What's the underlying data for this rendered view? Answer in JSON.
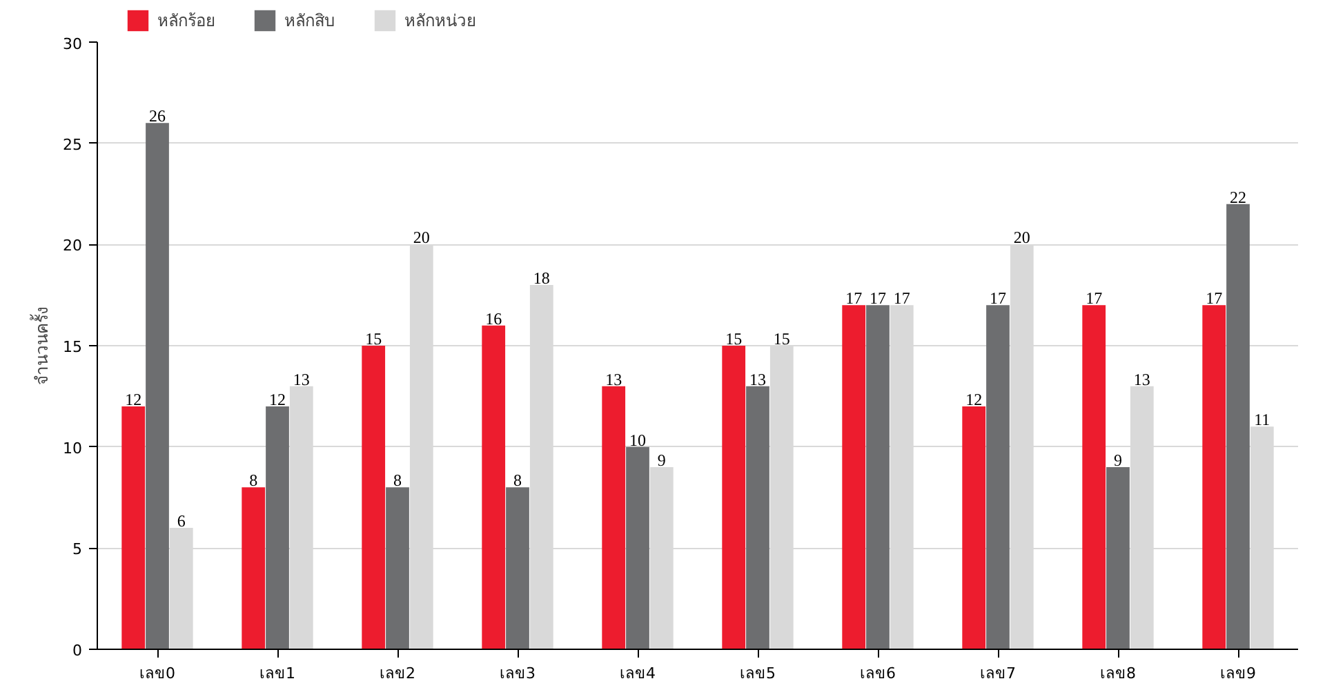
{
  "chart_data": {
    "type": "bar",
    "ylabel": "จำนวนครั้ง",
    "categories": [
      "เลข0",
      "เลข1",
      "เลข2",
      "เลข3",
      "เลข4",
      "เลข5",
      "เลข6",
      "เลข7",
      "เลข8",
      "เลข9"
    ],
    "series": [
      {
        "name": "หลักร้อย",
        "color": "#ed1c2e",
        "values": [
          12,
          8,
          15,
          16,
          13,
          15,
          17,
          12,
          17,
          17
        ]
      },
      {
        "name": "หลักสิบ",
        "color": "#6d6e70",
        "values": [
          26,
          12,
          8,
          8,
          10,
          13,
          17,
          17,
          9,
          22
        ]
      },
      {
        "name": "หลักหน่วย",
        "color": "#d9d9d9",
        "values": [
          6,
          13,
          20,
          18,
          9,
          15,
          17,
          20,
          13,
          11
        ]
      }
    ],
    "ylim": [
      0,
      30
    ],
    "yticks": [
      0,
      5,
      10,
      15,
      20,
      25,
      30
    ],
    "grid": "y",
    "legend": "top left",
    "data_labels": true
  }
}
